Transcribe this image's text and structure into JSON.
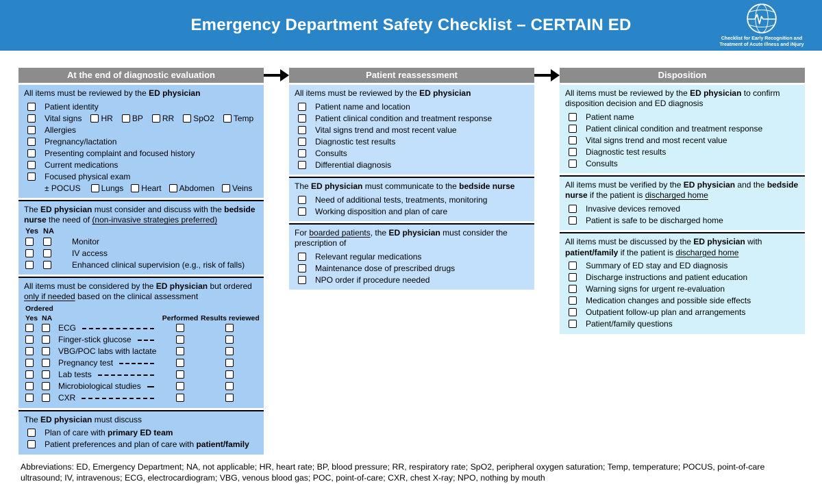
{
  "header": {
    "title": "Emergency Department Safety Checklist – CERTAIN ED",
    "banner_color": "#2a85c8",
    "logo_tagline_line1": "Checklist for Early Recognition and",
    "logo_tagline_line2": "Treatment of Acute Illness and iNjury"
  },
  "colors": {
    "column_header_bg": "#8c8c8c",
    "column1_bg": "#a6cdf4",
    "column2_bg": "#c2e0fb",
    "column3_bg": "#d2f1fa"
  },
  "columns": [
    {
      "id": "end-of-diagnostic-evaluation",
      "header": "At the end of diagnostic evaluation",
      "bg": "#a6cdf4",
      "sections": [
        {
          "intro": "All items must be reviewed by the **ED physician**",
          "items": [
            {
              "label": "Patient identity"
            },
            {
              "label": "Vital signs",
              "inline": [
                "HR",
                "BP",
                "RR",
                "SpO2",
                "Temp"
              ]
            },
            {
              "label": "Allergies"
            },
            {
              "label": "Pregnancy/lactation"
            },
            {
              "label": "Presenting complaint and focused history"
            },
            {
              "label": "Current medications"
            },
            {
              "label": "Focused physical exam",
              "subline": {
                "prefix": "± POCUS",
                "inline": [
                  "Lungs",
                  "Heart",
                  "Abdomen",
                  "Veins"
                ]
              }
            }
          ]
        },
        {
          "intro": "The **ED physician** must consider and discuss with the **bedside nurse** the need of __(non-invasive strategies preferred)__",
          "yes_na_header": [
            "Yes",
            "NA"
          ],
          "items": [
            {
              "label": "Monitor",
              "checks": 2
            },
            {
              "label": "IV access",
              "checks": 2
            },
            {
              "label": "Enhanced clinical supervision (e.g., risk of falls)",
              "checks": 2
            }
          ]
        },
        {
          "intro": "All items must be considered by the **ED physician** but ordered __only if needed__ based on the clinical assessment",
          "table": {
            "group_header": "Ordered",
            "yes": "Yes",
            "na": "NA",
            "performed": "Performed",
            "results": "Results reviewed",
            "rows": [
              "ECG",
              "Finger-stick glucose",
              "VBG/POC labs with lactate",
              "Pregnancy test",
              "Lab tests",
              "Microbiological studies",
              "CXR"
            ]
          }
        },
        {
          "intro": "The **ED physician** must discuss",
          "items": [
            {
              "label": "Plan of care with **primary ED team**"
            },
            {
              "label": "Patient preferences and plan of care with **patient/family**"
            }
          ]
        }
      ]
    },
    {
      "id": "patient-reassessment",
      "header": "Patient reassessment",
      "bg": "#c2e0fb",
      "sections": [
        {
          "intro": "All items must be reviewed by the **ED physician**",
          "items": [
            {
              "label": "Patient name and location"
            },
            {
              "label": "Patient clinical condition and treatment response"
            },
            {
              "label": "Vital signs trend and most recent value"
            },
            {
              "label": "Diagnostic test results"
            },
            {
              "label": "Consults"
            },
            {
              "label": "Differential diagnosis"
            }
          ]
        },
        {
          "intro": "The **ED physician** must communicate to the **bedside nurse**",
          "items": [
            {
              "label": "Need of additional tests, treatments, monitoring"
            },
            {
              "label": "Working disposition and plan of care"
            }
          ]
        },
        {
          "intro": "For __boarded patients__, the **ED physician** must consider the prescription of",
          "items": [
            {
              "label": "Relevant regular medications"
            },
            {
              "label": "Maintenance dose of prescribed drugs"
            },
            {
              "label": "NPO order if procedure needed"
            }
          ]
        }
      ]
    },
    {
      "id": "disposition",
      "header": "Disposition",
      "bg": "#d2f1fa",
      "sections": [
        {
          "intro": "All items must be reviewed by the **ED physician** to confirm disposition decision and ED diagnosis",
          "items": [
            {
              "label": "Patient name"
            },
            {
              "label": "Patient clinical condition and treatment response"
            },
            {
              "label": "Vital signs trend and most recent value"
            },
            {
              "label": "Diagnostic test results"
            },
            {
              "label": "Consults"
            }
          ]
        },
        {
          "intro": "All items must be verified by the **ED physician** and the **bedside nurse** if the patient is __discharged home__",
          "items": [
            {
              "label": "Invasive devices removed"
            },
            {
              "label": "Patient is safe to be discharged home"
            }
          ]
        },
        {
          "intro": "All items must be discussed by the **ED physician** with **patient/family** if the patient is __discharged home__",
          "items": [
            {
              "label": "Summary of ED stay and ED diagnosis"
            },
            {
              "label": "Discharge instructions and patient education"
            },
            {
              "label": "Warning signs for urgent re-evaluation"
            },
            {
              "label": "Medication changes and possible side effects"
            },
            {
              "label": "Outpatient follow-up plan and arrangements"
            },
            {
              "label": "Patient/family questions"
            }
          ]
        }
      ]
    }
  ],
  "footer": {
    "abbreviations": "Abbreviations: ED, Emergency Department; NA, not applicable; HR, heart rate; BP, blood pressure; RR, respiratory rate; SpO2, peripheral oxygen saturation; Temp, temperature; POCUS, point-of-care ultrasound;  IV, intravenous; ECG, electrocardiogram; VBG, venous blood gas; POC, point-of-care; CXR, chest X-ray; NPO, nothing by mouth"
  }
}
